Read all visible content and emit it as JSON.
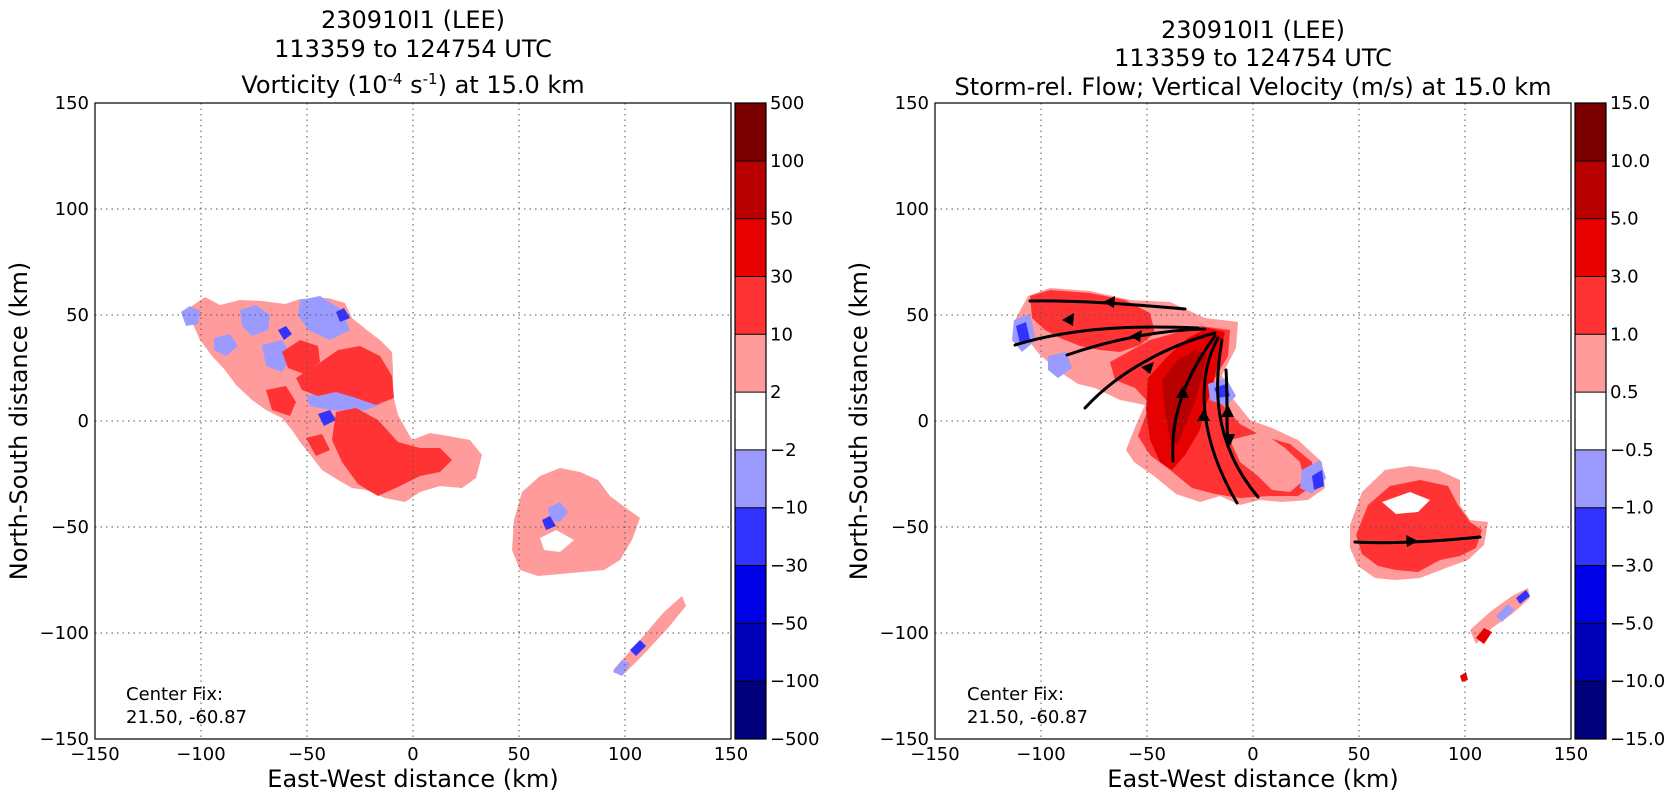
{
  "chart_data": [
    {
      "type": "contour",
      "title_line1": "230910I1 (LEE)",
      "title_line2": "113359 to 124754 UTC",
      "title_line3_prefix": "Vorticity (10",
      "title_line3_sup1": "-4",
      "title_line3_mid": " s",
      "title_line3_sup2": "-1",
      "title_line3_suffix": ") at 15.0 km",
      "xlabel": "East-West distance (km)",
      "ylabel": "North-South distance (km)",
      "xlim": [
        -150,
        150
      ],
      "ylim": [
        -150,
        150
      ],
      "xticks": [
        "−150",
        "−100",
        "−50",
        "0",
        "50",
        "100",
        "150"
      ],
      "yticks": [
        "150",
        "100",
        "50",
        "0",
        "−50",
        "−100",
        "−150"
      ],
      "grid": true,
      "annotation_line1": "Center Fix:",
      "annotation_line2": "21.50, -60.87",
      "colorbar_labels": [
        "500",
        "100",
        "50",
        "30",
        "10",
        "2",
        "−2",
        "−10",
        "−30",
        "−50",
        "−100",
        "−500"
      ],
      "colorbar_colors": [
        "#7a0000",
        "#b80000",
        "#e60000",
        "#ff3333",
        "#ff9b9b",
        "#ffffff",
        "#9b9bff",
        "#3333ff",
        "#0000e6",
        "#0000b8",
        "#00007a"
      ]
    },
    {
      "type": "contour",
      "title_line1": "230910I1 (LEE)",
      "title_line2": "113359 to 124754 UTC",
      "title_line3": "Storm-rel. Flow; Vertical Velocity (m/s) at 15.0 km",
      "xlabel": "East-West distance (km)",
      "ylabel": "North-South distance (km)",
      "xlim": [
        -150,
        150
      ],
      "ylim": [
        -150,
        150
      ],
      "xticks": [
        "−150",
        "−100",
        "−50",
        "0",
        "50",
        "100",
        "150"
      ],
      "yticks": [
        "150",
        "100",
        "50",
        "0",
        "−50",
        "−100",
        "−150"
      ],
      "grid": true,
      "annotation_line1": "Center Fix:",
      "annotation_line2": "21.50, -60.87",
      "colorbar_labels": [
        "15.0",
        "10.0",
        "5.0",
        "3.0",
        "1.0",
        "0.5",
        "−0.5",
        "−1.0",
        "−3.0",
        "−5.0",
        "−10.0",
        "−15.0"
      ],
      "colorbar_colors": [
        "#7a0000",
        "#b80000",
        "#e60000",
        "#ff3333",
        "#ff9b9b",
        "#ffffff",
        "#9b9bff",
        "#3333ff",
        "#0000e6",
        "#0000b8",
        "#00007a"
      ]
    }
  ]
}
